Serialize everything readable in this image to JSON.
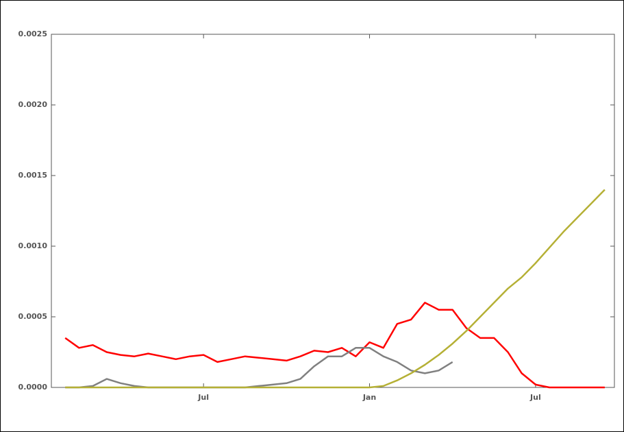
{
  "chart_data": {
    "type": "line",
    "categories": [
      null,
      null,
      null,
      null,
      null,
      null,
      null,
      null,
      null,
      null,
      null,
      "Jul",
      null,
      null,
      null,
      null,
      null,
      null,
      null,
      null,
      null,
      null,
      null,
      "Jan",
      null,
      null,
      null,
      null,
      null,
      null,
      null,
      null,
      null,
      null,
      null,
      "Jul",
      null,
      null,
      null,
      null,
      null
    ],
    "series": [
      {
        "color": "#ff0000",
        "values": [
          null,
          0.00035,
          0.00028,
          0.0003,
          0.00025,
          0.00023,
          0.00022,
          0.00024,
          0.00022,
          0.0002,
          0.00022,
          0.00023,
          0.00018,
          0.0002,
          0.00022,
          0.00021,
          0.0002,
          0.00019,
          0.00022,
          0.00026,
          0.00025,
          0.00028,
          0.00022,
          0.00032,
          0.00028,
          0.00045,
          0.00048,
          0.0006,
          0.00055,
          0.00055,
          0.00042,
          0.00035,
          0.00035,
          0.00025,
          0.0001,
          2e-05,
          0,
          0,
          0,
          0,
          0
        ]
      },
      {
        "color": "#808080",
        "values": [
          null,
          0,
          0,
          1e-05,
          6e-05,
          3e-05,
          1e-05,
          0,
          0,
          0,
          0,
          0,
          0,
          0,
          0,
          1e-05,
          2e-05,
          3e-05,
          6e-05,
          0.00015,
          0.00022,
          0.00022,
          0.00028,
          0.00028,
          0.00022,
          0.00018,
          0.00012,
          0.0001,
          0.00012,
          0.00018,
          null,
          null,
          null,
          null,
          null,
          null,
          null,
          null,
          null,
          null,
          null
        ]
      },
      {
        "color": "#b5b035",
        "values": [
          null,
          0,
          0,
          0,
          0,
          0,
          0,
          0,
          0,
          0,
          0,
          0,
          0,
          0,
          0,
          0,
          0,
          0,
          0,
          0,
          0,
          0,
          0,
          0,
          1e-05,
          5e-05,
          0.0001,
          0.00016,
          0.00023,
          0.00031,
          0.0004,
          0.0005,
          0.0006,
          0.0007,
          0.00078,
          0.00088,
          0.00099,
          0.0011,
          0.0012,
          0.0013,
          0.0014
        ]
      }
    ],
    "ylim": [
      0,
      0.0025
    ],
    "yticks": [
      {
        "value": 0,
        "label": "0.0000"
      },
      {
        "value": 0.0005,
        "label": "0.0005"
      },
      {
        "value": 0.001,
        "label": "0.0010"
      },
      {
        "value": 0.0015,
        "label": "0.0015"
      },
      {
        "value": 0.002,
        "label": "0.0020"
      },
      {
        "value": 0.0025,
        "label": "0.0025"
      }
    ]
  }
}
